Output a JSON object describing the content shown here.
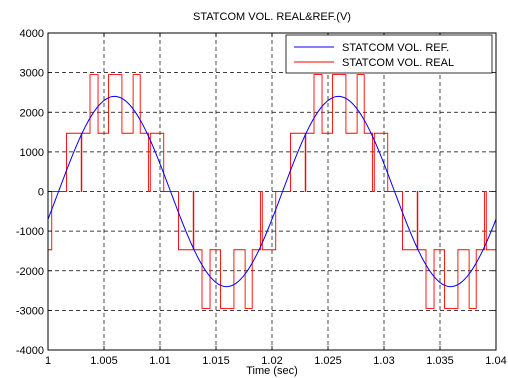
{
  "chart_data": {
    "type": "line",
    "title": "STATCOM VOL. REAL&REF.(V)",
    "xlabel": "Time (sec)",
    "ylabel": "",
    "xlim": [
      1,
      1.04
    ],
    "ylim": [
      -4000,
      4000
    ],
    "x_ticks": [
      "1",
      "1.005",
      "1.01",
      "1.015",
      "1.02",
      "1.025",
      "1.03",
      "1.035",
      "1.04"
    ],
    "y_ticks": [
      "4000",
      "3000",
      "2000",
      "1000",
      "0",
      "-1000",
      "-2000",
      "-3000",
      "-4000"
    ],
    "grid": true,
    "grid_style": "dashed",
    "legend_position": "top-right",
    "series": [
      {
        "name": "STATCOM VOL. REF.",
        "color": "#0000ff",
        "shape": "sine",
        "amplitude": 2400,
        "frequency_hz": 50,
        "value_at_x_start": -700,
        "x": [
          1.0,
          1.002,
          1.004,
          1.006,
          1.008,
          1.01,
          1.012,
          1.014,
          1.016,
          1.018,
          1.02,
          1.022,
          1.024,
          1.026,
          1.028,
          1.03,
          1.032,
          1.034,
          1.036,
          1.038,
          1.04
        ],
        "values": [
          -700,
          750,
          1950,
          2400,
          1850,
          650,
          -750,
          -1950,
          -2400,
          -1850,
          -700,
          750,
          1950,
          2400,
          1850,
          650,
          -750,
          -1950,
          -2400,
          -1850,
          -700
        ]
      },
      {
        "name": "STATCOM VOL. REAL",
        "color": "#ff0000",
        "shape": "multilevel-pwm",
        "levels": [
          -2950,
          -1470,
          0,
          1470,
          2950
        ]
      }
    ]
  }
}
